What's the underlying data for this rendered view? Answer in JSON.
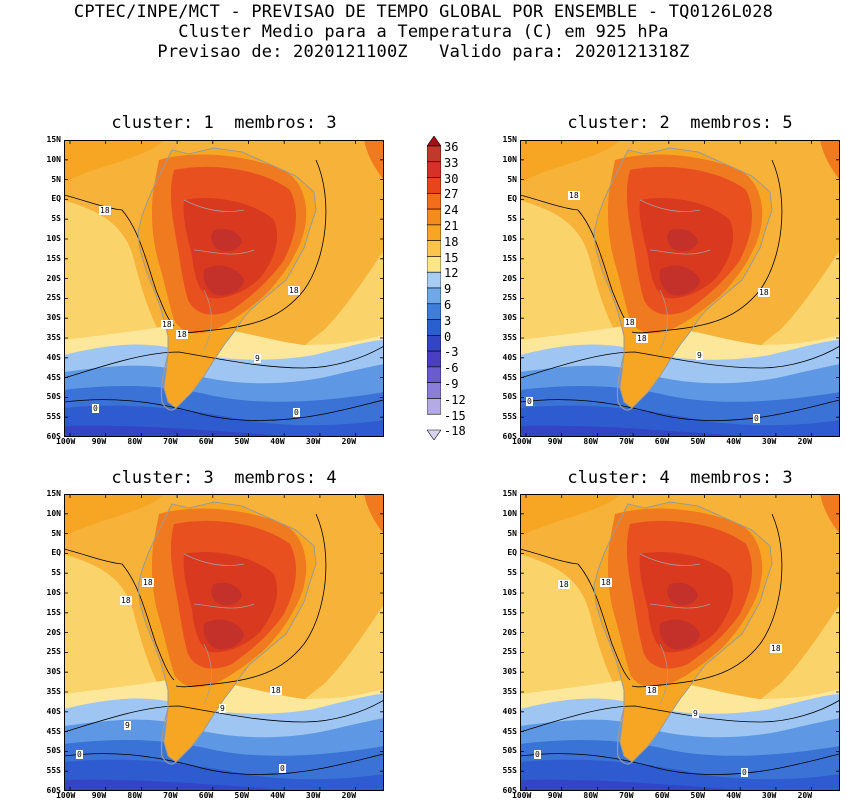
{
  "header": {
    "line1": "CPTEC/INPE/MCT - PREVISAO DE TEMPO GLOBAL POR ENSEMBLE - TQ0126L028",
    "line2": "Cluster Medio para a Temperatura (C) em 925 hPa",
    "line3": "Previsao de: 2020121100Z   Valido para: 2020121318Z"
  },
  "panels": [
    {
      "title": "cluster: 1  membros: 3"
    },
    {
      "title": "cluster: 2  membros: 5"
    },
    {
      "title": "cluster: 3  membros: 4"
    },
    {
      "title": "cluster: 4  membros: 3"
    }
  ],
  "lat_labels": [
    "15N",
    "10N",
    "5N",
    "EQ",
    "5S",
    "10S",
    "15S",
    "20S",
    "25S",
    "30S",
    "35S",
    "40S",
    "45S",
    "50S",
    "55S",
    "60S"
  ],
  "lon_labels": [
    "100W",
    "90W",
    "80W",
    "70W",
    "60W",
    "50W",
    "40W",
    "30W",
    "20W"
  ],
  "colorbar": {
    "labels": [
      "36",
      "33",
      "30",
      "27",
      "24",
      "21",
      "18",
      "15",
      "12",
      "9",
      "6",
      "3",
      "0",
      "-3",
      "-6",
      "-9",
      "-12",
      "-15",
      "-18"
    ],
    "colors": [
      "#a50f15",
      "#c0392b",
      "#d73027",
      "#e8451e",
      "#f46d1b",
      "#f28c1c",
      "#f6a623",
      "#fbc54b",
      "#fde58a",
      "#a8cdf5",
      "#6fa8e8",
      "#3d7fd8",
      "#2a5fcf",
      "#3344c4",
      "#4a3fc0",
      "#6a5ccd",
      "#8a7ed8",
      "#b3aae6",
      "#d9d3f2"
    ]
  },
  "contour_labels": {
    "p1": [
      "18",
      "18",
      "18",
      "18",
      "9",
      "0",
      "0"
    ],
    "p2": [
      "18",
      "18",
      "18",
      "18",
      "9",
      "0",
      "0"
    ],
    "p3": [
      "18",
      "18",
      "18",
      "9",
      "9",
      "0",
      "0"
    ],
    "p4": [
      "18",
      "18",
      "18",
      "18",
      "9",
      "0",
      "0"
    ]
  }
}
